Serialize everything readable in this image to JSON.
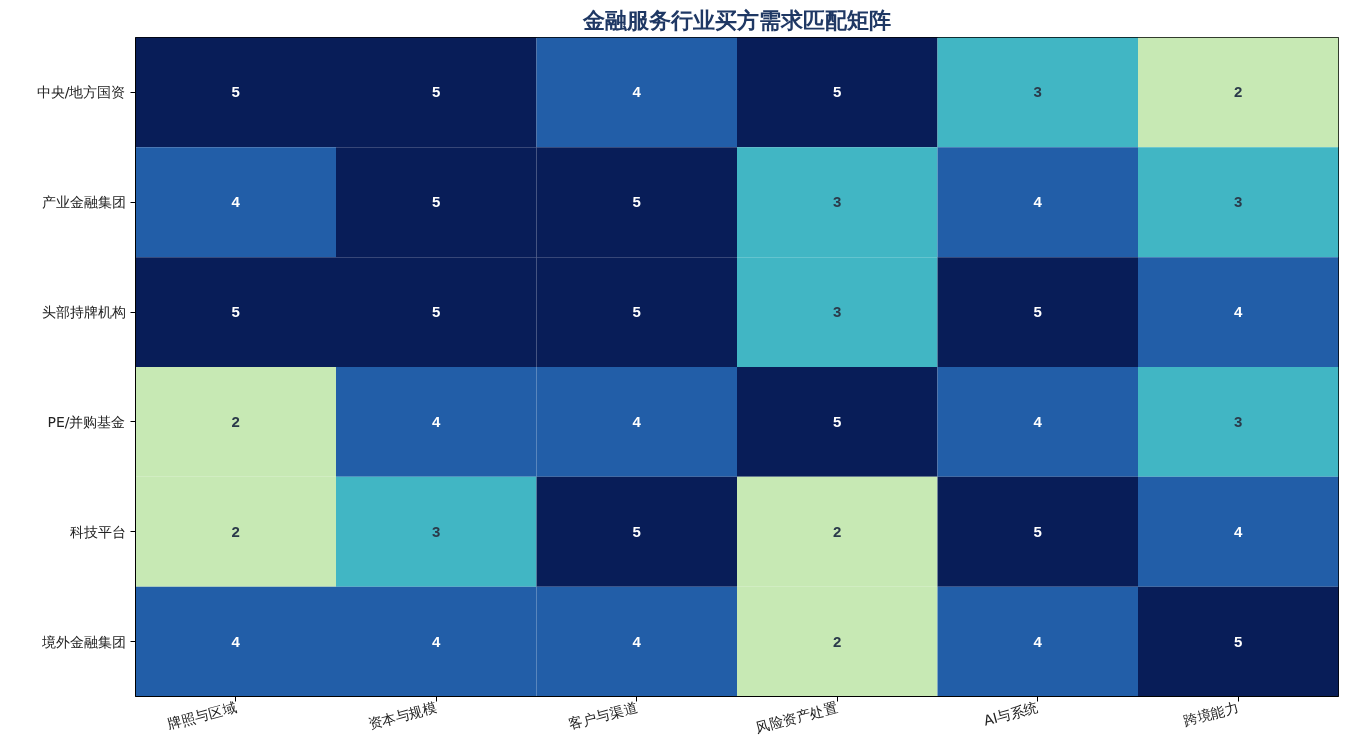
{
  "chart_data": {
    "type": "heatmap",
    "title": "金融服务行业买方需求匹配矩阵",
    "categories": [
      "牌照与区域",
      "资本与规模",
      "客户与渠道",
      "风险资产处置",
      "AI与系统",
      "跨境能力"
    ],
    "y_categories": [
      "中央/地方国资",
      "产业金融集团",
      "头部持牌机构",
      "PE/并购基金",
      "科技平台",
      "境外金融集团"
    ],
    "cells": [
      [
        5,
        5,
        4,
        5,
        3,
        2
      ],
      [
        4,
        5,
        5,
        3,
        4,
        3
      ],
      [
        5,
        5,
        5,
        3,
        5,
        4
      ],
      [
        2,
        4,
        4,
        5,
        4,
        3
      ],
      [
        2,
        3,
        5,
        2,
        5,
        4
      ],
      [
        4,
        4,
        4,
        2,
        4,
        5
      ]
    ],
    "colors": [
      "#c7e9b4",
      "#41b6c4",
      "#225ea8",
      "#081d58"
    ],
    "data_labels": true,
    "grid": false
  }
}
